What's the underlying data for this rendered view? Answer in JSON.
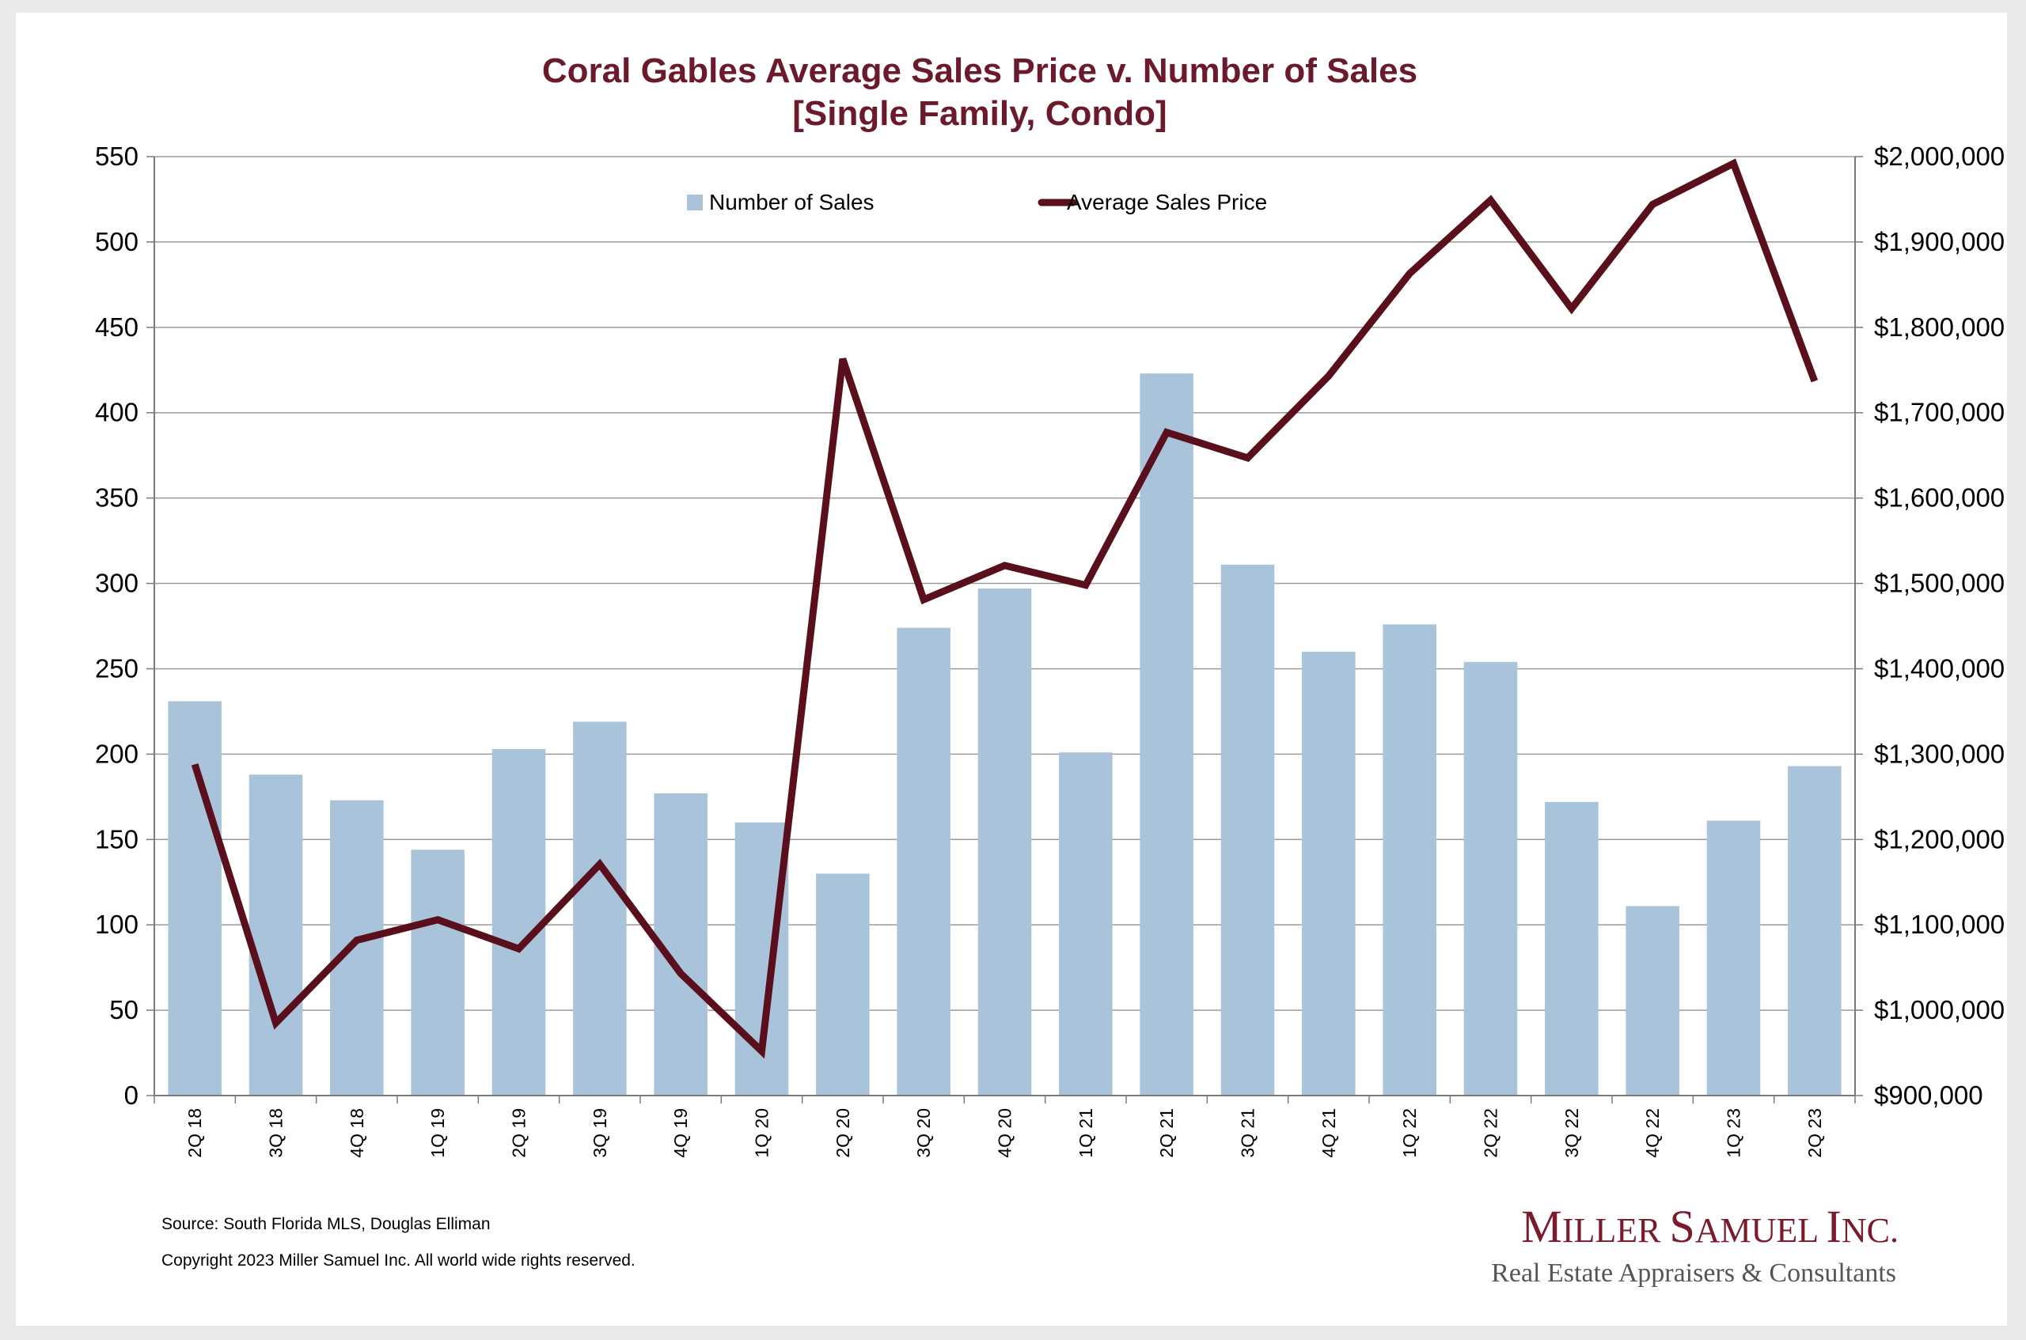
{
  "colors": {
    "bar": "#a9c4da",
    "line": "#5a0f1c",
    "title": "#6b1a2b",
    "grid": "#9a9a9a",
    "logo": "#7a1a2a",
    "logo_sub": "#555555"
  },
  "chart_data": {
    "type": "bar",
    "title": "Coral Gables Average Sales Price v. Number of Sales",
    "subtitle": "[Single Family, Condo]",
    "categories": [
      "2Q 18",
      "3Q 18",
      "4Q 18",
      "1Q 19",
      "2Q 19",
      "3Q 19",
      "4Q 19",
      "1Q 20",
      "2Q 20",
      "3Q 20",
      "4Q 20",
      "1Q 21",
      "2Q 21",
      "3Q 21",
      "4Q 21",
      "1Q 22",
      "2Q 22",
      "3Q 22",
      "4Q 22",
      "1Q 23",
      "2Q 23"
    ],
    "series": [
      {
        "name": "Number of Sales",
        "type": "bar",
        "axis": "left",
        "values": [
          231,
          188,
          173,
          144,
          203,
          219,
          177,
          160,
          130,
          274,
          297,
          201,
          423,
          311,
          260,
          276,
          254,
          172,
          111,
          161,
          193
        ]
      },
      {
        "name": "Average Sales Price",
        "type": "line",
        "axis": "right",
        "values": [
          1288000,
          985000,
          1082000,
          1106000,
          1072000,
          1171000,
          1043000,
          952000,
          1763000,
          1481000,
          1521000,
          1498000,
          1677000,
          1647000,
          1743000,
          1863000,
          1949000,
          1822000,
          1944000,
          1992000,
          1737000
        ]
      }
    ],
    "ylim_left": [
      0,
      550
    ],
    "yticks_left": [
      "0",
      "50",
      "100",
      "150",
      "200",
      "250",
      "300",
      "350",
      "400",
      "450",
      "500",
      "550"
    ],
    "ylim_right": [
      900000,
      2000000
    ],
    "yticks_right": [
      "$900,000",
      "$1,000,000",
      "$1,100,000",
      "$1,200,000",
      "$1,300,000",
      "$1,400,000",
      "$1,500,000",
      "$1,600,000",
      "$1,700,000",
      "$1,800,000",
      "$1,900,000",
      "$2,000,000"
    ],
    "grid": true,
    "legend_position": "top-center"
  },
  "footer": {
    "source": "Source: South Florida MLS, Douglas Elliman",
    "copyright": "Copyright 2023 Miller Samuel Inc.  All world wide rights reserved."
  },
  "logo": {
    "name": "Miller Samuel Inc.",
    "tagline": "Real Estate Appraisers & Consultants"
  }
}
